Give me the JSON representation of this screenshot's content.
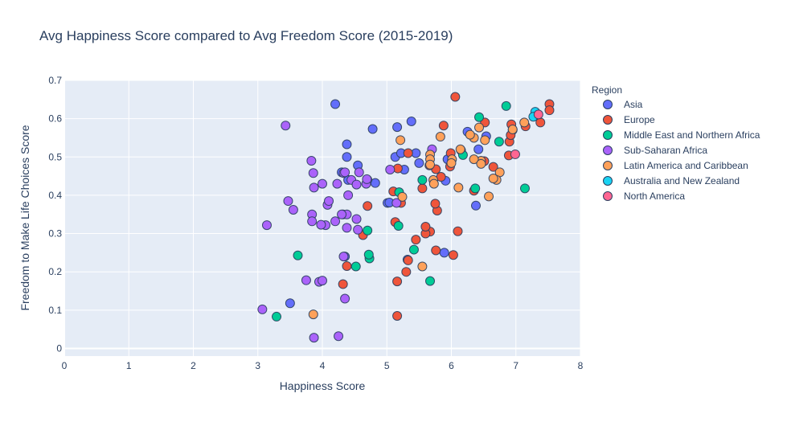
{
  "chart_data": {
    "type": "scatter",
    "title": "Avg Happiness Score compared to Avg Freedom Score (2015-2019)",
    "xlabel": "Happiness Score",
    "ylabel": "Freedom to Make Life Choices Score",
    "xlim": [
      0,
      8
    ],
    "ylim": [
      -0.02,
      0.7
    ],
    "x_ticks": [
      "0",
      "1",
      "2",
      "3",
      "4",
      "5",
      "6",
      "7",
      "8"
    ],
    "y_ticks": [
      "0",
      "0.1",
      "0.2",
      "0.3",
      "0.4",
      "0.5",
      "0.6",
      "0.7"
    ],
    "grid": true,
    "legend_title": "Region",
    "legend_position": "right",
    "series": [
      {
        "name": "Asia",
        "color": "#636efa",
        "points": [
          [
            4.2,
            0.638
          ],
          [
            3.5,
            0.118
          ],
          [
            4.35,
            0.24
          ],
          [
            4.38,
            0.533
          ],
          [
            4.38,
            0.5
          ],
          [
            4.55,
            0.478
          ],
          [
            4.78,
            0.573
          ],
          [
            5.16,
            0.578
          ],
          [
            5.13,
            0.5
          ],
          [
            5.22,
            0.51
          ],
          [
            5.27,
            0.467
          ],
          [
            5.38,
            0.593
          ],
          [
            5.45,
            0.51
          ],
          [
            5.5,
            0.484
          ],
          [
            5.01,
            0.38
          ],
          [
            4.3,
            0.46
          ],
          [
            4.4,
            0.44
          ],
          [
            4.82,
            0.432
          ],
          [
            6.25,
            0.566
          ],
          [
            6.42,
            0.52
          ],
          [
            6.54,
            0.554
          ],
          [
            6.38,
            0.373
          ],
          [
            5.94,
            0.494
          ],
          [
            5.89,
            0.25
          ],
          [
            5.91,
            0.438
          ],
          [
            5.32,
            0.232
          ],
          [
            4.7,
            0.44
          ],
          [
            5.04,
            0.381
          ]
        ]
      },
      {
        "name": "Europe",
        "color": "#ef553b",
        "points": [
          [
            7.52,
            0.638
          ],
          [
            7.52,
            0.622
          ],
          [
            7.38,
            0.59
          ],
          [
            7.32,
            0.61
          ],
          [
            7.15,
            0.58
          ],
          [
            6.95,
            0.57
          ],
          [
            6.93,
            0.585
          ],
          [
            6.9,
            0.54
          ],
          [
            6.92,
            0.557
          ],
          [
            6.89,
            0.504
          ],
          [
            6.65,
            0.474
          ],
          [
            6.52,
            0.59
          ],
          [
            6.51,
            0.489
          ],
          [
            6.35,
            0.412
          ],
          [
            6.06,
            0.657
          ],
          [
            6.1,
            0.306
          ],
          [
            6.03,
            0.244
          ],
          [
            5.98,
            0.475
          ],
          [
            5.99,
            0.51
          ],
          [
            5.88,
            0.582
          ],
          [
            5.84,
            0.448
          ],
          [
            5.78,
            0.36
          ],
          [
            5.76,
            0.468
          ],
          [
            5.75,
            0.378
          ],
          [
            5.67,
            0.305
          ],
          [
            5.6,
            0.3
          ],
          [
            5.6,
            0.318
          ],
          [
            5.55,
            0.418
          ],
          [
            5.45,
            0.284
          ],
          [
            5.33,
            0.23
          ],
          [
            5.3,
            0.2
          ],
          [
            5.22,
            0.38
          ],
          [
            5.17,
            0.47
          ],
          [
            5.13,
            0.33
          ],
          [
            5.1,
            0.41
          ],
          [
            5.16,
            0.175
          ],
          [
            5.16,
            0.085
          ],
          [
            4.7,
            0.372
          ],
          [
            4.63,
            0.296
          ],
          [
            4.38,
            0.215
          ],
          [
            4.32,
            0.168
          ],
          [
            4.32,
            0.35
          ],
          [
            5.33,
            0.51
          ],
          [
            5.76,
            0.256
          ],
          [
            5.66,
            0.478
          ]
        ]
      },
      {
        "name": "Middle East and Northern Africa",
        "color": "#00cc96",
        "points": [
          [
            6.85,
            0.633
          ],
          [
            6.43,
            0.604
          ],
          [
            6.74,
            0.54
          ],
          [
            6.15,
            0.517
          ],
          [
            6.18,
            0.505
          ],
          [
            7.14,
            0.418
          ],
          [
            6.37,
            0.418
          ],
          [
            5.55,
            0.44
          ],
          [
            5.19,
            0.408
          ],
          [
            5.18,
            0.32
          ],
          [
            5.42,
            0.258
          ],
          [
            4.73,
            0.235
          ],
          [
            4.72,
            0.245
          ],
          [
            4.52,
            0.214
          ],
          [
            5.67,
            0.176
          ],
          [
            3.62,
            0.243
          ],
          [
            3.29,
            0.083
          ],
          [
            4.7,
            0.308
          ]
        ]
      },
      {
        "name": "Sub-Saharan Africa",
        "color": "#ab63fa",
        "points": [
          [
            3.43,
            0.582
          ],
          [
            3.83,
            0.49
          ],
          [
            3.86,
            0.458
          ],
          [
            3.87,
            0.42
          ],
          [
            4.0,
            0.43
          ],
          [
            4.08,
            0.375
          ],
          [
            4.1,
            0.385
          ],
          [
            4.05,
            0.322
          ],
          [
            3.98,
            0.323
          ],
          [
            3.84,
            0.35
          ],
          [
            3.84,
            0.332
          ],
          [
            4.23,
            0.43
          ],
          [
            4.33,
            0.458
          ],
          [
            4.35,
            0.46
          ],
          [
            4.4,
            0.4
          ],
          [
            4.45,
            0.44
          ],
          [
            4.53,
            0.428
          ],
          [
            4.57,
            0.46
          ],
          [
            4.68,
            0.43
          ],
          [
            4.38,
            0.35
          ],
          [
            4.38,
            0.315
          ],
          [
            4.53,
            0.338
          ],
          [
            4.55,
            0.31
          ],
          [
            4.2,
            0.332
          ],
          [
            4.3,
            0.35
          ],
          [
            3.55,
            0.362
          ],
          [
            3.47,
            0.385
          ],
          [
            3.14,
            0.322
          ],
          [
            3.07,
            0.102
          ],
          [
            3.75,
            0.178
          ],
          [
            3.95,
            0.174
          ],
          [
            4.0,
            0.177
          ],
          [
            3.87,
            0.028
          ],
          [
            4.25,
            0.032
          ],
          [
            4.35,
            0.13
          ],
          [
            4.33,
            0.24
          ],
          [
            5.7,
            0.52
          ],
          [
            5.05,
            0.467
          ],
          [
            5.15,
            0.38
          ],
          [
            4.69,
            0.442
          ]
        ]
      },
      {
        "name": "Latin America and Caribbean",
        "color": "#ffa15a",
        "points": [
          [
            7.13,
            0.59
          ],
          [
            6.95,
            0.572
          ],
          [
            6.75,
            0.46
          ],
          [
            6.7,
            0.44
          ],
          [
            6.65,
            0.444
          ],
          [
            6.52,
            0.544
          ],
          [
            6.43,
            0.577
          ],
          [
            6.46,
            0.49
          ],
          [
            6.35,
            0.55
          ],
          [
            6.29,
            0.558
          ],
          [
            6.35,
            0.494
          ],
          [
            6.14,
            0.52
          ],
          [
            6.11,
            0.42
          ],
          [
            6.01,
            0.494
          ],
          [
            6.0,
            0.484
          ],
          [
            5.83,
            0.553
          ],
          [
            5.67,
            0.506
          ],
          [
            5.67,
            0.494
          ],
          [
            5.67,
            0.48
          ],
          [
            5.72,
            0.44
          ],
          [
            5.73,
            0.43
          ],
          [
            5.21,
            0.544
          ],
          [
            5.24,
            0.396
          ],
          [
            5.55,
            0.214
          ],
          [
            6.58,
            0.397
          ],
          [
            6.46,
            0.482
          ],
          [
            3.86,
            0.089
          ]
        ]
      },
      {
        "name": "Australia and New Zealand",
        "color": "#19d3f3",
        "points": [
          [
            7.3,
            0.618
          ],
          [
            7.27,
            0.605
          ]
        ]
      },
      {
        "name": "North America",
        "color": "#ff6692",
        "points": [
          [
            7.35,
            0.611
          ],
          [
            6.99,
            0.507
          ]
        ]
      }
    ]
  }
}
